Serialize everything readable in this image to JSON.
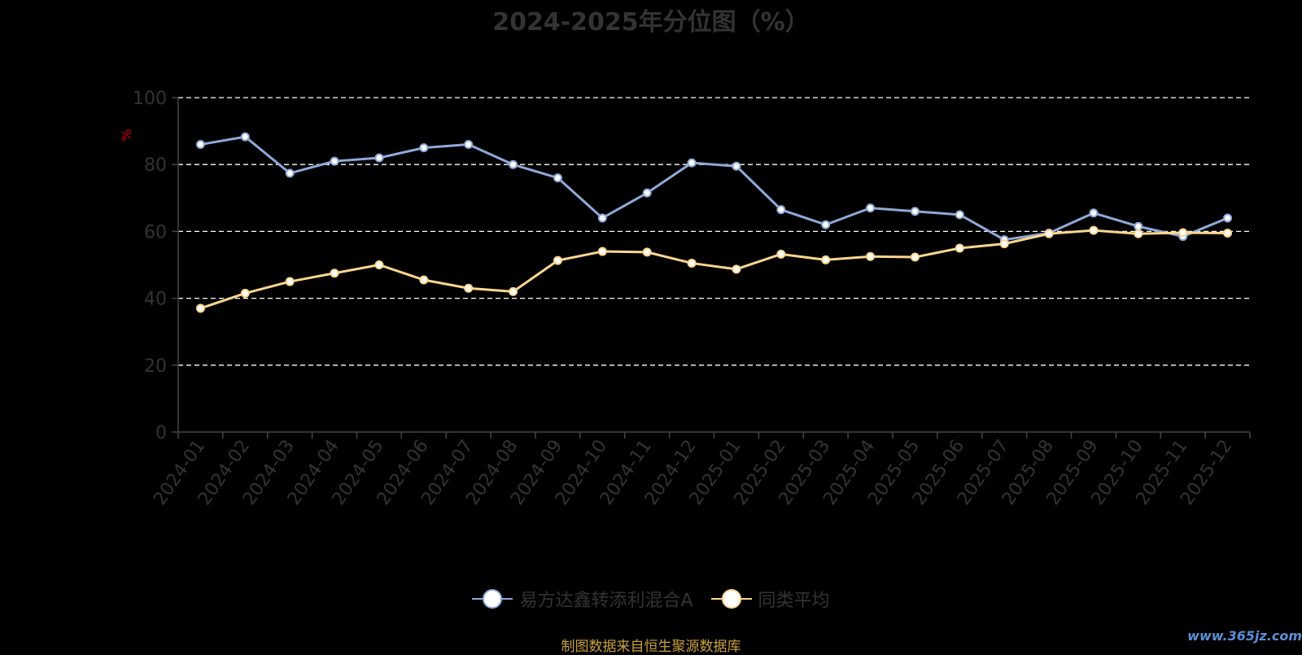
{
  "chart_data": {
    "type": "line",
    "title": "2024-2025年分位图（%）",
    "ylabel": "%",
    "ylim": [
      0,
      100
    ],
    "yticks": [
      0,
      20,
      40,
      60,
      80,
      100
    ],
    "grid": true,
    "legend_position": "bottom-center",
    "categories": [
      "2024-01",
      "2024-02",
      "2024-03",
      "2024-04",
      "2024-05",
      "2024-06",
      "2024-07",
      "2024-08",
      "2024-09",
      "2024-10",
      "2024-11",
      "2024-12",
      "2025-01",
      "2025-02",
      "2025-03",
      "2025-04",
      "2025-05",
      "2025-06",
      "2025-07",
      "2025-08",
      "2025-09",
      "2025-10",
      "2025-11",
      "2025-12"
    ],
    "series": [
      {
        "name": "易方达鑫转添利混合A",
        "color": "#8fa9d8",
        "values": [
          86,
          88.3,
          77.4,
          81,
          82,
          85,
          86,
          80,
          76,
          64,
          71.5,
          80.5,
          79.5,
          66.5,
          62,
          67,
          66,
          65,
          57.5,
          59.5,
          65.5,
          61.5,
          58.5,
          64
        ]
      },
      {
        "name": "同类平均",
        "color": "#fbd68f",
        "values": [
          37,
          41.5,
          45,
          47.5,
          50,
          45.5,
          43,
          42,
          51.3,
          54,
          53.8,
          50.5,
          48.7,
          53.2,
          51.5,
          52.5,
          52.3,
          55,
          56.3,
          59.3,
          60.3,
          59.3,
          59.6,
          59.5
        ]
      }
    ]
  },
  "source_text": "制图数据来自恒生聚源数据库",
  "watermark_text": "www.365jz.com"
}
